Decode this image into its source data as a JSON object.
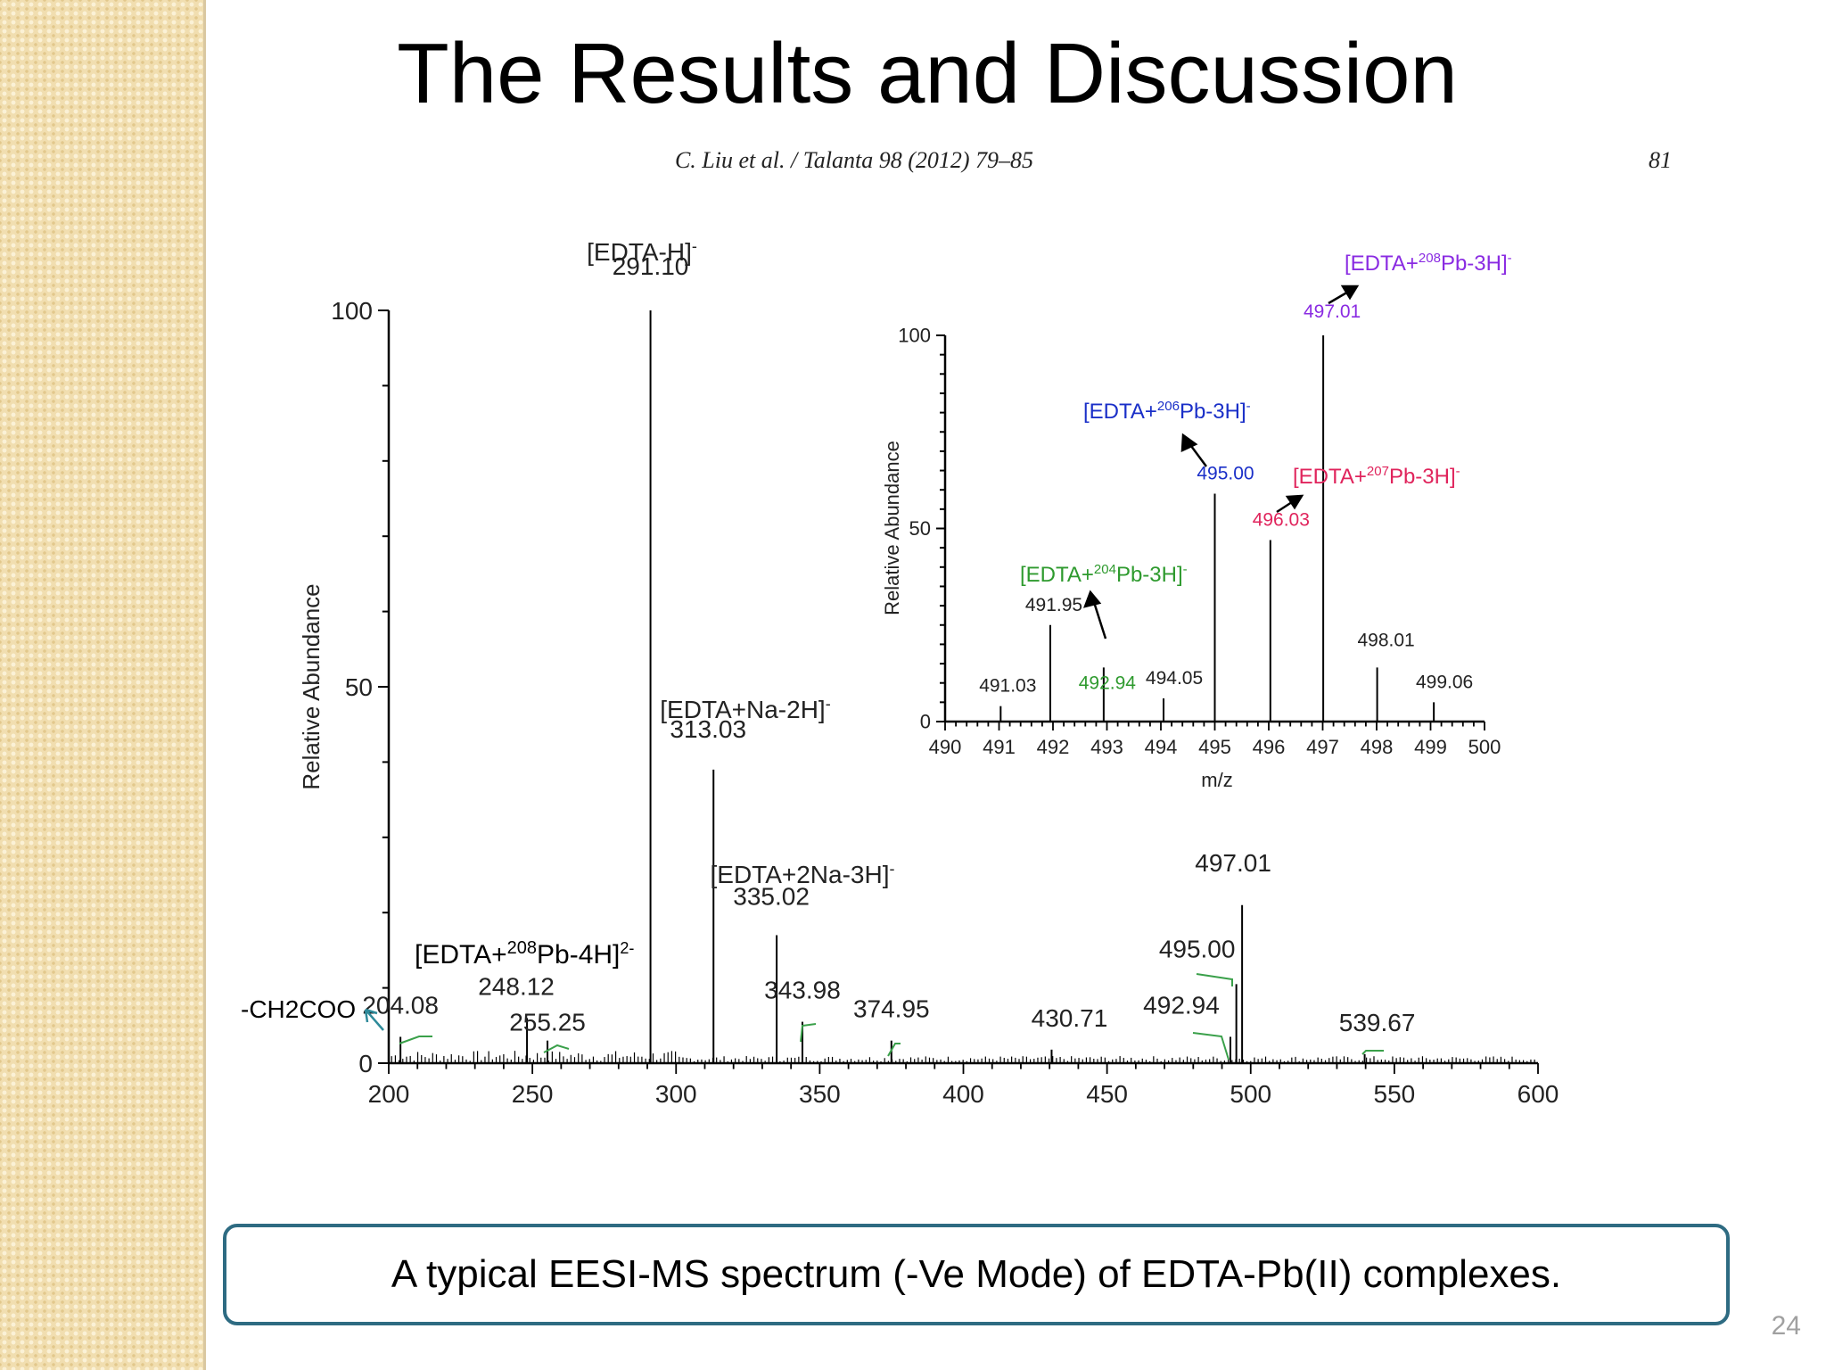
{
  "slide": {
    "title": "The Results and Discussion",
    "caption": "A typical EESI-MS spectrum (-Ve Mode) of EDTA-Pb(II) complexes.",
    "page_number": "24"
  },
  "figure": {
    "citation": "C. Liu et al. / Talanta 98 (2012) 79–85",
    "journal_page": "81",
    "side_label": "-CH2COO"
  },
  "chart_data": [
    {
      "type": "bar",
      "xlim": [
        200,
        600
      ],
      "ylim": [
        0,
        100
      ],
      "x_ticks": [
        "200",
        "250",
        "300",
        "350",
        "400",
        "450",
        "500",
        "550",
        "600"
      ],
      "y_ticks": [
        "0",
        "50",
        "100"
      ],
      "ylabel": "Relative Abundance",
      "xlabel": "",
      "peaks": [
        {
          "mz": 204.08,
          "intensity": 3.5,
          "label": "204.08"
        },
        {
          "mz": 248.12,
          "intensity": 6,
          "label": "248.12"
        },
        {
          "mz": 255.25,
          "intensity": 3,
          "label": "255.25"
        },
        {
          "mz": 291.1,
          "intensity": 100,
          "label": "291.10"
        },
        {
          "mz": 313.03,
          "intensity": 39,
          "label": "313.03"
        },
        {
          "mz": 335.02,
          "intensity": 17,
          "label": "335.02"
        },
        {
          "mz": 343.98,
          "intensity": 5.5,
          "label": "343.98"
        },
        {
          "mz": 374.95,
          "intensity": 3,
          "label": "374.95"
        },
        {
          "mz": 430.71,
          "intensity": 1.8,
          "label": "430.71"
        },
        {
          "mz": 492.94,
          "intensity": 3.5,
          "label": "492.94"
        },
        {
          "mz": 495.0,
          "intensity": 10.5,
          "label": "495.00"
        },
        {
          "mz": 497.01,
          "intensity": 21,
          "label": "497.01"
        },
        {
          "mz": 539.67,
          "intensity": 1.2,
          "label": "539.67"
        }
      ],
      "annotations": [
        {
          "text": "[EDTA-H]",
          "sup": "-"
        },
        {
          "text": "[EDTA+Na-2H]",
          "sup": "-"
        },
        {
          "text": "[EDTA+2Na-3H]",
          "sup": "-"
        },
        {
          "text": "[EDTA+208Pb-4H]",
          "sup": "2-"
        }
      ]
    },
    {
      "type": "bar",
      "xlim": [
        490,
        500
      ],
      "ylim": [
        0,
        100
      ],
      "x_ticks": [
        "490",
        "491",
        "492",
        "493",
        "494",
        "495",
        "496",
        "497",
        "498",
        "499",
        "500"
      ],
      "y_ticks": [
        "0",
        "50",
        "100"
      ],
      "ylabel": "Relative Abundance",
      "xlabel": "m/z",
      "peaks": [
        {
          "mz": 491.03,
          "intensity": 4,
          "label": "491.03"
        },
        {
          "mz": 491.95,
          "intensity": 25,
          "label": "491.95"
        },
        {
          "mz": 492.94,
          "intensity": 14,
          "label": "492.94"
        },
        {
          "mz": 494.05,
          "intensity": 6,
          "label": "494.05"
        },
        {
          "mz": 495.0,
          "intensity": 59,
          "label": "495.00"
        },
        {
          "mz": 496.03,
          "intensity": 47,
          "label": "496.03"
        },
        {
          "mz": 497.01,
          "intensity": 100,
          "label": "497.01"
        },
        {
          "mz": 498.01,
          "intensity": 14,
          "label": "498.01"
        },
        {
          "mz": 499.06,
          "intensity": 5,
          "label": "499.06"
        }
      ],
      "annotations": [
        {
          "pre": "[EDTA+",
          "iso": "204",
          "post": "Pb-3H]",
          "sup": "-",
          "color": "#2e9a2e"
        },
        {
          "pre": "[EDTA+",
          "iso": "206",
          "post": "Pb-3H]",
          "sup": "-",
          "color": "#1a2fc8"
        },
        {
          "pre": "[EDTA+",
          "iso": "207",
          "post": "Pb-3H]",
          "sup": "-",
          "color": "#e0245c"
        },
        {
          "pre": "[EDTA+",
          "iso": "208",
          "post": "Pb-3H]",
          "sup": "-",
          "color": "#8a2be2"
        }
      ],
      "label_colors": {
        "492.94": "#2e9a2e",
        "495.00": "#1a2fc8",
        "496.03": "#e0245c",
        "497.01": "#8a2be2"
      }
    }
  ]
}
